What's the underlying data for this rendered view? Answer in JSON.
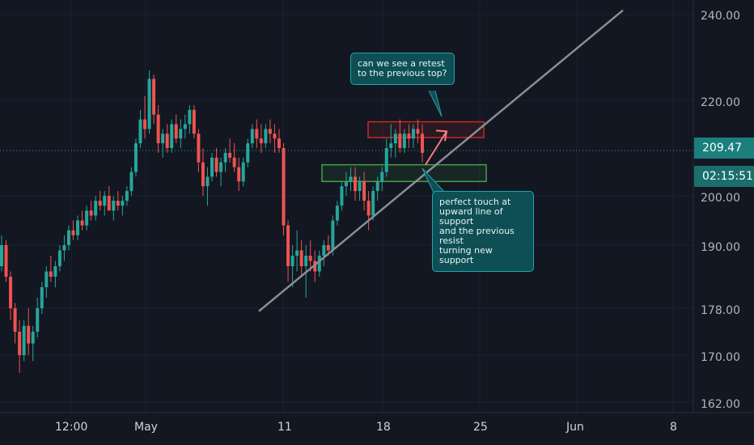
{
  "chart_data": {
    "type": "candlestick",
    "y_axis": {
      "ticks": [
        "240.00",
        "220.00",
        "209.47",
        "200.00",
        "190.00",
        "178.00",
        "170.00",
        "162.00"
      ],
      "range": [
        160,
        242
      ]
    },
    "x_axis": {
      "ticks": [
        "12:00",
        "May",
        "11",
        "18",
        "25",
        "Jun",
        "8"
      ]
    },
    "grid": true,
    "current_price": {
      "value": 209.47,
      "label": "209.47",
      "countdown": "02:15:51"
    },
    "annotations": {
      "retest_note": "can we see a retest\nto the previous top?",
      "support_note": "perfect touch at\nupward line of support\nand the previous resist\nturning new support"
    },
    "zones": [
      {
        "name": "resistance-zone",
        "price_top": 215.5,
        "price_bottom": 212.2,
        "color": "#c62828"
      },
      {
        "name": "support-zone",
        "price_top": 206.5,
        "price_bottom": 203.0,
        "color": "#43a047"
      }
    ],
    "trendline": {
      "from_price": 177.5,
      "to_price": 241,
      "color": "#8a8d94"
    },
    "projection": {
      "from_price": 206.5,
      "to_price": 213.5,
      "color": "#f77c80"
    },
    "candles_ohlc": [
      [
        186,
        192,
        185,
        190
      ],
      [
        190,
        191,
        183,
        184
      ],
      [
        184,
        185,
        176,
        178
      ],
      [
        178,
        179,
        172,
        174
      ],
      [
        174,
        176,
        167,
        170
      ],
      [
        170,
        176,
        169,
        175
      ],
      [
        175,
        178,
        170,
        172
      ],
      [
        172,
        175,
        169,
        174
      ],
      [
        174,
        180,
        173,
        178
      ],
      [
        178,
        183,
        177,
        182
      ],
      [
        182,
        186,
        180,
        185
      ],
      [
        185,
        188,
        183,
        184
      ],
      [
        184,
        187,
        182,
        186
      ],
      [
        186,
        190,
        185,
        189
      ],
      [
        189,
        192,
        187,
        190
      ],
      [
        190,
        194,
        189,
        193
      ],
      [
        193,
        195,
        191,
        192
      ],
      [
        192,
        196,
        191,
        195
      ],
      [
        195,
        197,
        193,
        194
      ],
      [
        194,
        198,
        193,
        197
      ],
      [
        197,
        199,
        195,
        196
      ],
      [
        196,
        200,
        195,
        199
      ],
      [
        199,
        201,
        197,
        198
      ],
      [
        198,
        201,
        196,
        200
      ],
      [
        200,
        202,
        198,
        197
      ],
      [
        197,
        200,
        195,
        199
      ],
      [
        199,
        201,
        197,
        198
      ],
      [
        198,
        200,
        196,
        199
      ],
      [
        199,
        202,
        198,
        201
      ],
      [
        201,
        206,
        200,
        205
      ],
      [
        205,
        212,
        204,
        211
      ],
      [
        211,
        218,
        210,
        216
      ],
      [
        216,
        221,
        212,
        214
      ],
      [
        214,
        227,
        213,
        225
      ],
      [
        225,
        226,
        215,
        217
      ],
      [
        217,
        219,
        209,
        211
      ],
      [
        211,
        214,
        208,
        213
      ],
      [
        213,
        215,
        209,
        210
      ],
      [
        210,
        216,
        209,
        215
      ],
      [
        215,
        217,
        211,
        212
      ],
      [
        212,
        216,
        210,
        214
      ],
      [
        214,
        217,
        212,
        215
      ],
      [
        215,
        219,
        213,
        218
      ],
      [
        218,
        219,
        212,
        213
      ],
      [
        213,
        214,
        205,
        207
      ],
      [
        207,
        210,
        200,
        202
      ],
      [
        202,
        206,
        198,
        204
      ],
      [
        204,
        209,
        203,
        208
      ],
      [
        208,
        210,
        204,
        205
      ],
      [
        205,
        208,
        202,
        207
      ],
      [
        207,
        210,
        205,
        209
      ],
      [
        209,
        212,
        207,
        208
      ],
      [
        208,
        211,
        205,
        206
      ],
      [
        206,
        208,
        201,
        203
      ],
      [
        203,
        208,
        202,
        207
      ],
      [
        207,
        212,
        206,
        211
      ],
      [
        211,
        215,
        210,
        214
      ],
      [
        214,
        216,
        210,
        212
      ],
      [
        212,
        215,
        209,
        211
      ],
      [
        211,
        215,
        210,
        214
      ],
      [
        214,
        216,
        211,
        213
      ],
      [
        213,
        215,
        209,
        212
      ],
      [
        212,
        214,
        209,
        210
      ],
      [
        210,
        211,
        192,
        194
      ],
      [
        194,
        195,
        183,
        186
      ],
      [
        186,
        190,
        182,
        188
      ],
      [
        188,
        193,
        185,
        189
      ],
      [
        189,
        191,
        184,
        186
      ],
      [
        186,
        190,
        180,
        188
      ],
      [
        188,
        191,
        185,
        187
      ],
      [
        187,
        189,
        183,
        185
      ],
      [
        185,
        189,
        184,
        188
      ],
      [
        188,
        191,
        186,
        190
      ],
      [
        190,
        192,
        188,
        189
      ],
      [
        189,
        196,
        188,
        195
      ],
      [
        195,
        199,
        194,
        198
      ],
      [
        198,
        203,
        197,
        202
      ],
      [
        202,
        205,
        200,
        203
      ],
      [
        203,
        206,
        201,
        204
      ],
      [
        204,
        206,
        199,
        201
      ],
      [
        201,
        204,
        199,
        203
      ],
      [
        203,
        205,
        197,
        199
      ],
      [
        199,
        201,
        193,
        196
      ],
      [
        196,
        202,
        195,
        201
      ],
      [
        201,
        204,
        199,
        203
      ],
      [
        203,
        206,
        201,
        205
      ],
      [
        205,
        212,
        204,
        210
      ],
      [
        210,
        215,
        208,
        211
      ],
      [
        211,
        214,
        208,
        213
      ],
      [
        213,
        216,
        209,
        210
      ],
      [
        210,
        214,
        209,
        213
      ],
      [
        213,
        215,
        210,
        212
      ],
      [
        212,
        215,
        210,
        214
      ],
      [
        214,
        216,
        211,
        213
      ],
      [
        213,
        215,
        207,
        209
      ]
    ]
  }
}
